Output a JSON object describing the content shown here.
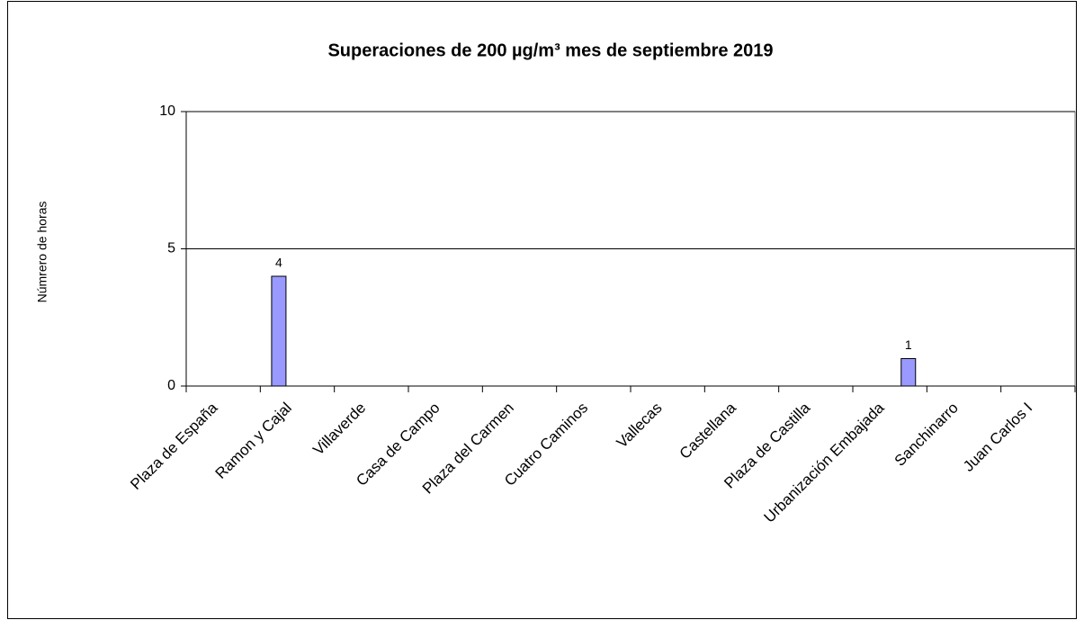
{
  "chart_data": {
    "type": "bar",
    "title": "Superaciones de 200 µg/m³ mes de septiembre 2019",
    "y_label": "Númrero de horas",
    "categories": [
      "Plaza de España",
      null,
      "Ramon y Cajal",
      null,
      "Villaverde",
      null,
      "Casa de Campo",
      null,
      "Plaza del Carmen",
      null,
      "Cuatro Caminos",
      null,
      "Vallecas",
      null,
      "Castellana",
      null,
      "Plaza de Castilla",
      null,
      "Urbanización Embajada",
      null,
      "Sanchinarro",
      null,
      "Juan Carlos I",
      null
    ],
    "values": [
      0,
      0,
      4,
      0,
      0,
      0,
      0,
      0,
      0,
      0,
      0,
      0,
      0,
      0,
      0,
      0,
      0,
      0,
      0,
      1,
      0,
      0,
      0,
      0
    ],
    "color": "#9999ff",
    "ylim": [
      0,
      10
    ],
    "yticks": [
      0,
      5,
      10
    ],
    "grid": true
  }
}
